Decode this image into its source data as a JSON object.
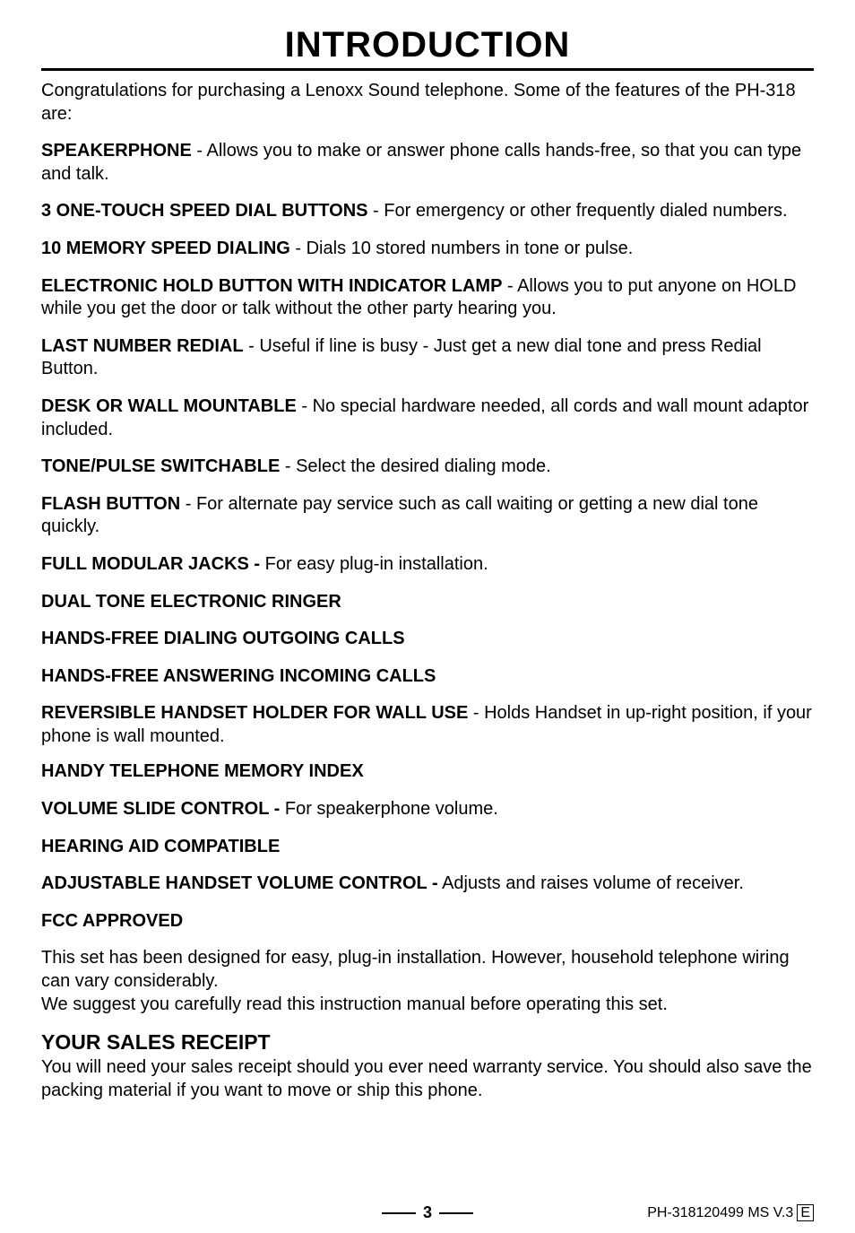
{
  "title": "INTRODUCTION",
  "title_fontsize": 40,
  "title_border_width": 3,
  "body_fontsize": 20,
  "intro": "Congratulations for purchasing a Lenoxx Sound telephone. Some of the features of the PH-318 are:",
  "features": [
    {
      "name": "SPEAKERPHONE",
      "desc": " - Allows you to make or answer phone calls hands-free, so that you can type and talk."
    },
    {
      "name": "3 ONE-TOUCH SPEED DIAL BUTTONS",
      "desc": " - For emergency or other frequently dialed numbers."
    },
    {
      "name": "10 MEMORY SPEED DIALING",
      "desc": " - Dials 10 stored numbers in tone or pulse."
    },
    {
      "name": "ELECTRONIC HOLD BUTTON WITH INDICATOR LAMP",
      "desc": " - Allows you to put anyone on HOLD while you get the door or talk without the other party hearing you."
    },
    {
      "name": "LAST NUMBER REDIAL",
      "desc": " - Useful if line is busy - Just get a new dial tone and press Redial Button."
    },
    {
      "name": "DESK OR WALL MOUNTABLE",
      "desc": " - No special hardware needed, all cords and wall mount adaptor included."
    },
    {
      "name": "TONE/PULSE SWITCHABLE",
      "desc": " - Select the desired dialing mode."
    },
    {
      "name": "FLASH BUTTON",
      "desc": " - For alternate pay service such as call waiting or getting a new dial tone quickly."
    },
    {
      "name": "FULL MODULAR JACKS -",
      "desc": " For easy plug-in installation."
    },
    {
      "name": "DUAL TONE ELECTRONIC RINGER",
      "desc": ""
    },
    {
      "name": "HANDS-FREE DIALING OUTGOING CALLS",
      "desc": ""
    },
    {
      "name": "HANDS-FREE ANSWERING INCOMING CALLS",
      "desc": ""
    },
    {
      "name": "REVERSIBLE HANDSET HOLDER FOR WALL USE",
      "desc": " - Holds Handset in up-right position, if your phone is wall mounted."
    },
    {
      "name": "HANDY TELEPHONE MEMORY INDEX",
      "desc": ""
    },
    {
      "name": "VOLUME SLIDE CONTROL -",
      "desc": " For speakerphone volume."
    },
    {
      "name": "HEARING AID COMPATIBLE",
      "desc": ""
    },
    {
      "name": "ADJUSTABLE HANDSET VOLUME CONTROL -",
      "desc": " Adjusts and raises volume of receiver."
    },
    {
      "name": "FCC APPROVED",
      "desc": ""
    }
  ],
  "closing1": "This set has been designed for easy, plug-in installation. However, household telephone wiring can vary considerably.",
  "closing2": "We suggest you carefully read this instruction manual before operating this set.",
  "receipt_heading": "YOUR SALES RECEIPT",
  "receipt_heading_fontsize": 23,
  "receipt_body": "You will need your sales receipt should you ever need warranty service. You should also save the packing material if you want to move or ship this phone.",
  "footer": {
    "page": "3",
    "rev": "PH-318120499 MS V.3",
    "ebox": "E"
  }
}
